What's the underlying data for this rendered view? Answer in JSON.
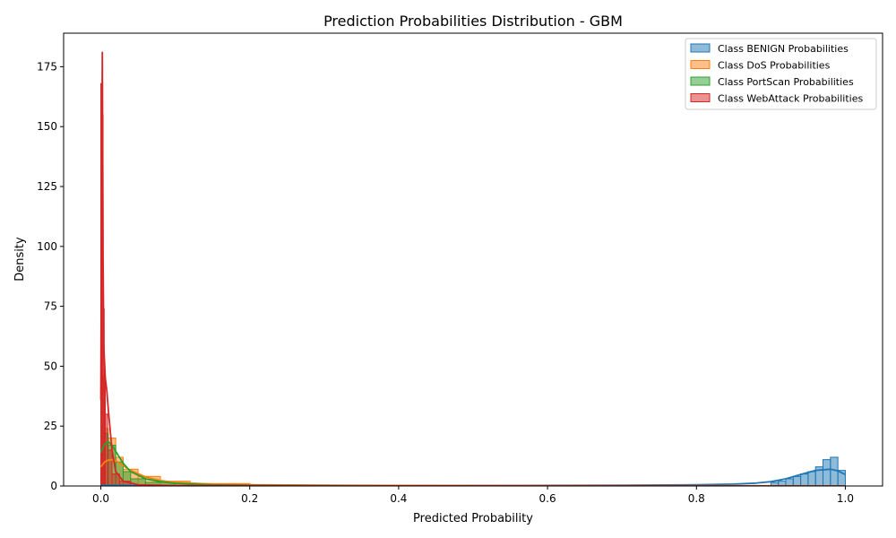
{
  "chart_data": {
    "type": "area",
    "title": "Prediction Probabilities Distribution - GBM",
    "xlabel": "Predicted Probability",
    "ylabel": "Density",
    "xlim": [
      -0.05,
      1.05
    ],
    "ylim": [
      0,
      189
    ],
    "xticks": [
      0.0,
      0.2,
      0.4,
      0.6,
      0.8,
      1.0
    ],
    "xtick_labels": [
      "0.0",
      "0.2",
      "0.4",
      "0.6",
      "0.8",
      "1.0"
    ],
    "yticks": [
      0,
      25,
      50,
      75,
      100,
      125,
      150,
      175
    ],
    "ytick_labels": [
      "0",
      "25",
      "50",
      "75",
      "100",
      "125",
      "150",
      "175"
    ],
    "grid": false,
    "legend_position": "top-right",
    "series": [
      {
        "name": "Class BENIGN Probabilities",
        "color": "#1f77b4",
        "hist": {
          "bins": [
            [
              0.0,
              0.005,
              1.0
            ],
            [
              0.9,
              0.91,
              1.5
            ],
            [
              0.91,
              0.92,
              2.0
            ],
            [
              0.92,
              0.93,
              3.0
            ],
            [
              0.93,
              0.94,
              4.0
            ],
            [
              0.94,
              0.95,
              5.0
            ],
            [
              0.95,
              0.96,
              6.0
            ],
            [
              0.96,
              0.97,
              8.0
            ],
            [
              0.97,
              0.98,
              11.0
            ],
            [
              0.98,
              0.99,
              12.0
            ],
            [
              0.99,
              1.0,
              6.5
            ]
          ]
        },
        "kde": {
          "x": [
            0.0,
            0.1,
            0.3,
            0.5,
            0.7,
            0.8,
            0.85,
            0.88,
            0.9,
            0.92,
            0.94,
            0.96,
            0.98,
            0.99,
            1.0
          ],
          "y": [
            0.3,
            0.2,
            0.2,
            0.2,
            0.3,
            0.5,
            0.8,
            1.2,
            1.8,
            3.0,
            4.8,
            6.5,
            7.0,
            6.3,
            4.8
          ]
        }
      },
      {
        "name": "Class DoS Probabilities",
        "color": "#ff7f0e",
        "hist": {
          "bins": [
            [
              0.0,
              0.005,
              15.0
            ],
            [
              0.005,
              0.01,
              24.0
            ],
            [
              0.01,
              0.02,
              20.0
            ],
            [
              0.02,
              0.03,
              12.0
            ],
            [
              0.03,
              0.05,
              7.0
            ],
            [
              0.05,
              0.08,
              4.0
            ],
            [
              0.08,
              0.12,
              2.0
            ],
            [
              0.12,
              0.2,
              1.0
            ]
          ]
        },
        "kde": {
          "x": [
            0.0,
            0.005,
            0.01,
            0.015,
            0.02,
            0.03,
            0.04,
            0.06,
            0.08,
            0.1,
            0.15,
            0.2,
            0.3,
            0.5,
            0.8,
            1.0
          ],
          "y": [
            8.0,
            10.0,
            10.8,
            11.0,
            10.5,
            8.5,
            6.5,
            3.8,
            2.3,
            1.5,
            0.8,
            0.5,
            0.3,
            0.15,
            0.1,
            0.05
          ]
        }
      },
      {
        "name": "Class PortScan Probabilities",
        "color": "#2ca02c",
        "hist": {
          "bins": [
            [
              0.0,
              0.005,
              46.0
            ],
            [
              0.005,
              0.01,
              22.0
            ],
            [
              0.01,
              0.02,
              17.0
            ],
            [
              0.02,
              0.03,
              10.0
            ],
            [
              0.03,
              0.04,
              6.0
            ],
            [
              0.04,
              0.06,
              3.0
            ],
            [
              0.06,
              0.1,
              1.5
            ]
          ]
        },
        "kde": {
          "x": [
            0.0,
            0.005,
            0.01,
            0.015,
            0.02,
            0.03,
            0.04,
            0.06,
            0.08,
            0.1,
            0.15,
            0.2,
            0.4,
            1.0
          ],
          "y": [
            14.0,
            17.5,
            18.5,
            17.0,
            14.5,
            9.5,
            6.0,
            3.0,
            1.8,
            1.1,
            0.5,
            0.3,
            0.1,
            0.05
          ]
        }
      },
      {
        "name": "Class WebAttack Probabilities",
        "color": "#d62728",
        "hist": {
          "bins": [
            [
              0.0,
              0.0015,
              168.0
            ],
            [
              0.0015,
              0.003,
              155.0
            ],
            [
              0.003,
              0.0045,
              74.0
            ],
            [
              0.0045,
              0.006,
              46.0
            ],
            [
              0.006,
              0.009,
              30.0
            ],
            [
              0.009,
              0.015,
              15.0
            ],
            [
              0.015,
              0.025,
              5.0
            ],
            [
              0.025,
              0.04,
              2.0
            ]
          ]
        },
        "kde": {
          "x": [
            0.0,
            0.001,
            0.002,
            0.003,
            0.004,
            0.006,
            0.008,
            0.01,
            0.015,
            0.02,
            0.03,
            0.05,
            0.1,
            0.3,
            1.0
          ],
          "y": [
            36.0,
            120.0,
            181.0,
            95.0,
            58.0,
            45.0,
            40.0,
            32.0,
            15.0,
            6.0,
            2.0,
            0.5,
            0.2,
            0.1,
            0.0
          ]
        }
      }
    ]
  }
}
